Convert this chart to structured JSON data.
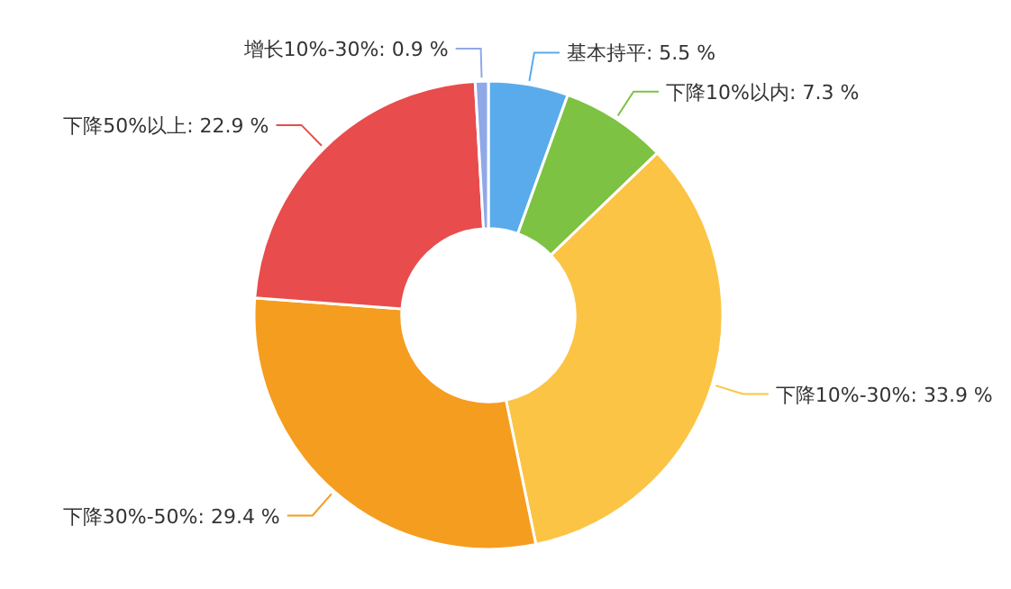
{
  "chart_data": {
    "type": "donut",
    "categories": [
      "基本持平",
      "下降10%以内",
      "下降10%-30%",
      "下降30%-50%",
      "下降50%以上",
      "增长10%-30%"
    ],
    "values": [
      5.5,
      7.3,
      33.9,
      29.4,
      22.9,
      0.9
    ],
    "value_labels": [
      "5.5 %",
      "7.3 %",
      "33.9 %",
      "29.4 %",
      "22.9 %",
      "0.9 %"
    ],
    "colors": [
      "#5aabec",
      "#7dc242",
      "#fcc445",
      "#f59d1f",
      "#e84c4c",
      "#8fa8e8"
    ]
  }
}
